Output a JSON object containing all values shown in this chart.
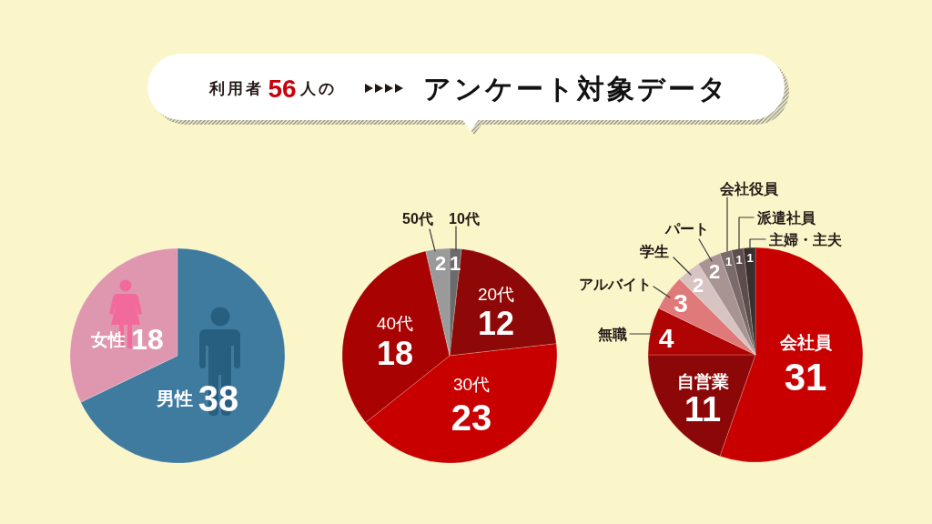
{
  "chart_data": [
    {
      "type": "other",
      "subtitle": "利用者56人の",
      "title": "アンケート対象データ"
    },
    {
      "type": "pie",
      "categories": [
        "男性",
        "女性"
      ],
      "values": [
        38,
        18
      ],
      "colors": [
        "#3e7b9f",
        "#df97b0"
      ],
      "data_labels": true
    },
    {
      "type": "pie",
      "categories": [
        "10代",
        "20代",
        "30代",
        "40代",
        "50代"
      ],
      "values": [
        1,
        12,
        23,
        18,
        2
      ],
      "colors": [
        "#6b6b6b",
        "#8e0808",
        "#c80000",
        "#a80202",
        "#9a9a9a"
      ],
      "data_labels": true
    },
    {
      "type": "pie",
      "categories": [
        "会社員",
        "自営業",
        "無職",
        "アルバイト",
        "学生",
        "パート",
        "会社役員",
        "派遣社員",
        "主婦・主夫"
      ],
      "values": [
        31,
        11,
        4,
        3,
        2,
        2,
        1,
        1,
        1
      ],
      "colors": [
        "#c80000",
        "#8c0707",
        "#b00303",
        "#e07a7a",
        "#d8c3c3",
        "#a99494",
        "#7b6a6a",
        "#5c4c4c",
        "#3b2e2e"
      ],
      "data_labels": true
    }
  ]
}
